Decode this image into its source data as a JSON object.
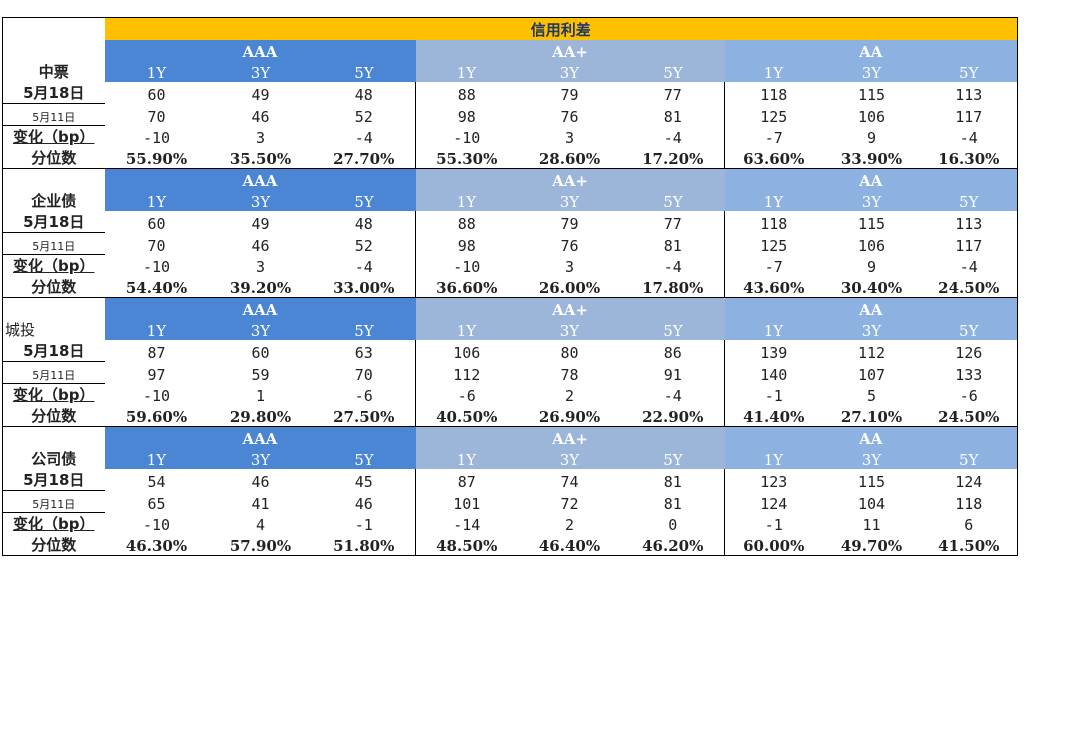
{
  "title": "信用利差",
  "groups": [
    "AAA",
    "AA+",
    "AA"
  ],
  "terms": [
    "1Y",
    "3Y",
    "5Y"
  ],
  "sections": [
    {
      "name": "中票",
      "rows": [
        {
          "label": "5月18日",
          "values": [
            "60",
            "49",
            "48",
            "88",
            "79",
            "77",
            "118",
            "115",
            "113"
          ]
        },
        {
          "label": "5月11日",
          "values": [
            "70",
            "46",
            "52",
            "98",
            "76",
            "81",
            "125",
            "106",
            "117"
          ]
        },
        {
          "label": "变化（bp）",
          "values": [
            "-10",
            "3",
            "-4",
            "-10",
            "3",
            "-4",
            "-7",
            "9",
            "-4"
          ]
        },
        {
          "label": "分位数",
          "values": [
            "55.90%",
            "35.50%",
            "27.70%",
            "55.30%",
            "28.60%",
            "17.20%",
            "63.60%",
            "33.90%",
            "16.30%"
          ]
        }
      ]
    },
    {
      "name": "企业债",
      "rows": [
        {
          "label": "5月18日",
          "values": [
            "60",
            "49",
            "48",
            "88",
            "79",
            "77",
            "118",
            "115",
            "113"
          ]
        },
        {
          "label": "5月11日",
          "values": [
            "70",
            "46",
            "52",
            "98",
            "76",
            "81",
            "125",
            "106",
            "117"
          ]
        },
        {
          "label": "变化（bp）",
          "values": [
            "-10",
            "3",
            "-4",
            "-10",
            "3",
            "-4",
            "-7",
            "9",
            "-4"
          ]
        },
        {
          "label": "分位数",
          "values": [
            "54.40%",
            "39.20%",
            "33.00%",
            "36.60%",
            "26.00%",
            "17.80%",
            "43.60%",
            "30.40%",
            "24.50%"
          ]
        }
      ]
    },
    {
      "name": "城投",
      "rows": [
        {
          "label": "5月18日",
          "values": [
            "87",
            "60",
            "63",
            "106",
            "80",
            "86",
            "139",
            "112",
            "126"
          ]
        },
        {
          "label": "5月11日",
          "values": [
            "97",
            "59",
            "70",
            "112",
            "78",
            "91",
            "140",
            "107",
            "133"
          ]
        },
        {
          "label": "变化（bp）",
          "values": [
            "-10",
            "1",
            "-6",
            "-6",
            "2",
            "-4",
            "-1",
            "5",
            "-6"
          ]
        },
        {
          "label": "分位数",
          "values": [
            "59.60%",
            "29.80%",
            "27.50%",
            "40.50%",
            "26.90%",
            "22.90%",
            "41.40%",
            "27.10%",
            "24.50%"
          ]
        }
      ]
    },
    {
      "name": "公司债",
      "rows": [
        {
          "label": "5月18日",
          "values": [
            "54",
            "46",
            "45",
            "87",
            "74",
            "81",
            "123",
            "115",
            "124"
          ]
        },
        {
          "label": "5月11日",
          "values": [
            "65",
            "41",
            "46",
            "101",
            "72",
            "81",
            "124",
            "104",
            "118"
          ]
        },
        {
          "label": "变化（bp）",
          "values": [
            "-10",
            "4",
            "-1",
            "-14",
            "2",
            "0",
            "-1",
            "11",
            "6"
          ]
        },
        {
          "label": "分位数",
          "values": [
            "46.30%",
            "57.90%",
            "51.80%",
            "48.50%",
            "46.40%",
            "46.20%",
            "60.00%",
            "49.70%",
            "41.50%"
          ]
        }
      ]
    }
  ],
  "colors": {
    "title_bg": "#ffc000",
    "aaa_bg": "#4a86d3",
    "aaplus_bg": "#9cb6da",
    "aa_bg": "#8db2e2"
  }
}
